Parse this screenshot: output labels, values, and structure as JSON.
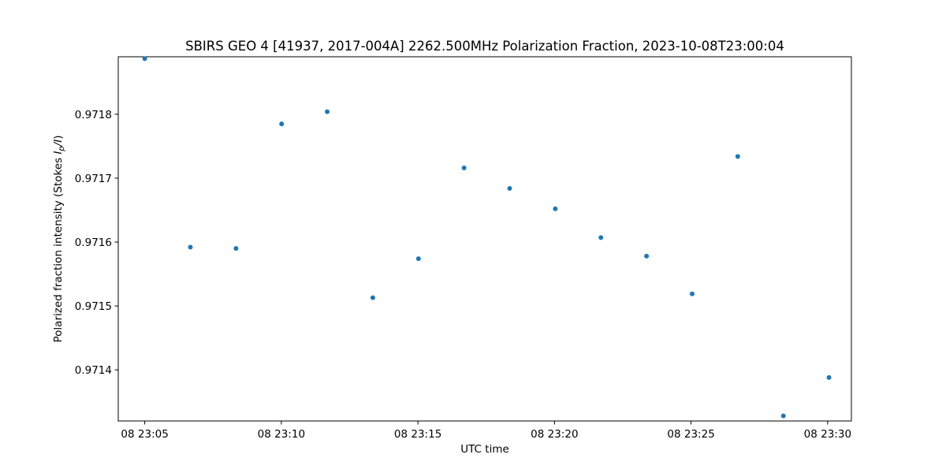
{
  "chart_data": {
    "type": "scatter",
    "title": "SBIRS GEO 4 [41937, 2017-004A] 2262.500MHz Polarization Fraction, 2023-10-08T23:00:04",
    "xlabel": "UTC time",
    "ylabel_prefix": "Polarized fraction intensity (Stokes ",
    "ylabel_math_i": "I",
    "ylabel_math_sub": "p",
    "ylabel_math_rest": "/I",
    "ylabel_suffix": ")",
    "x_unit": "minutes past 23:00 UTC on 2023-10-08",
    "xlim": [
      4.03,
      30.87
    ],
    "ylim": [
      0.97132,
      0.97189
    ],
    "grid": false,
    "marker_color": "#1f77b4",
    "x_ticks": [
      {
        "value": 5,
        "label": "08 23:05"
      },
      {
        "value": 10,
        "label": "08 23:10"
      },
      {
        "value": 15,
        "label": "08 23:15"
      },
      {
        "value": 20,
        "label": "08 23:20"
      },
      {
        "value": 25,
        "label": "08 23:25"
      },
      {
        "value": 30,
        "label": "08 23:30"
      }
    ],
    "y_ticks": [
      {
        "value": 0.9714,
        "label": "0.9714"
      },
      {
        "value": 0.9715,
        "label": "0.9715"
      },
      {
        "value": 0.9716,
        "label": "0.9716"
      },
      {
        "value": 0.9717,
        "label": "0.9717"
      },
      {
        "value": 0.9718,
        "label": "0.9718"
      }
    ],
    "series": [
      {
        "points": [
          {
            "x": 5.0,
            "y": 0.971887
          },
          {
            "x": 6.67,
            "y": 0.971592
          },
          {
            "x": 8.34,
            "y": 0.97159
          },
          {
            "x": 10.01,
            "y": 0.971785
          },
          {
            "x": 11.68,
            "y": 0.971804
          },
          {
            "x": 13.35,
            "y": 0.971513
          },
          {
            "x": 15.02,
            "y": 0.971574
          },
          {
            "x": 16.69,
            "y": 0.971716
          },
          {
            "x": 18.36,
            "y": 0.971684
          },
          {
            "x": 20.03,
            "y": 0.971652
          },
          {
            "x": 21.7,
            "y": 0.971607
          },
          {
            "x": 23.37,
            "y": 0.971578
          },
          {
            "x": 25.04,
            "y": 0.971519
          },
          {
            "x": 26.71,
            "y": 0.971734
          },
          {
            "x": 28.38,
            "y": 0.971328
          },
          {
            "x": 30.05,
            "y": 0.971388
          }
        ]
      }
    ]
  }
}
